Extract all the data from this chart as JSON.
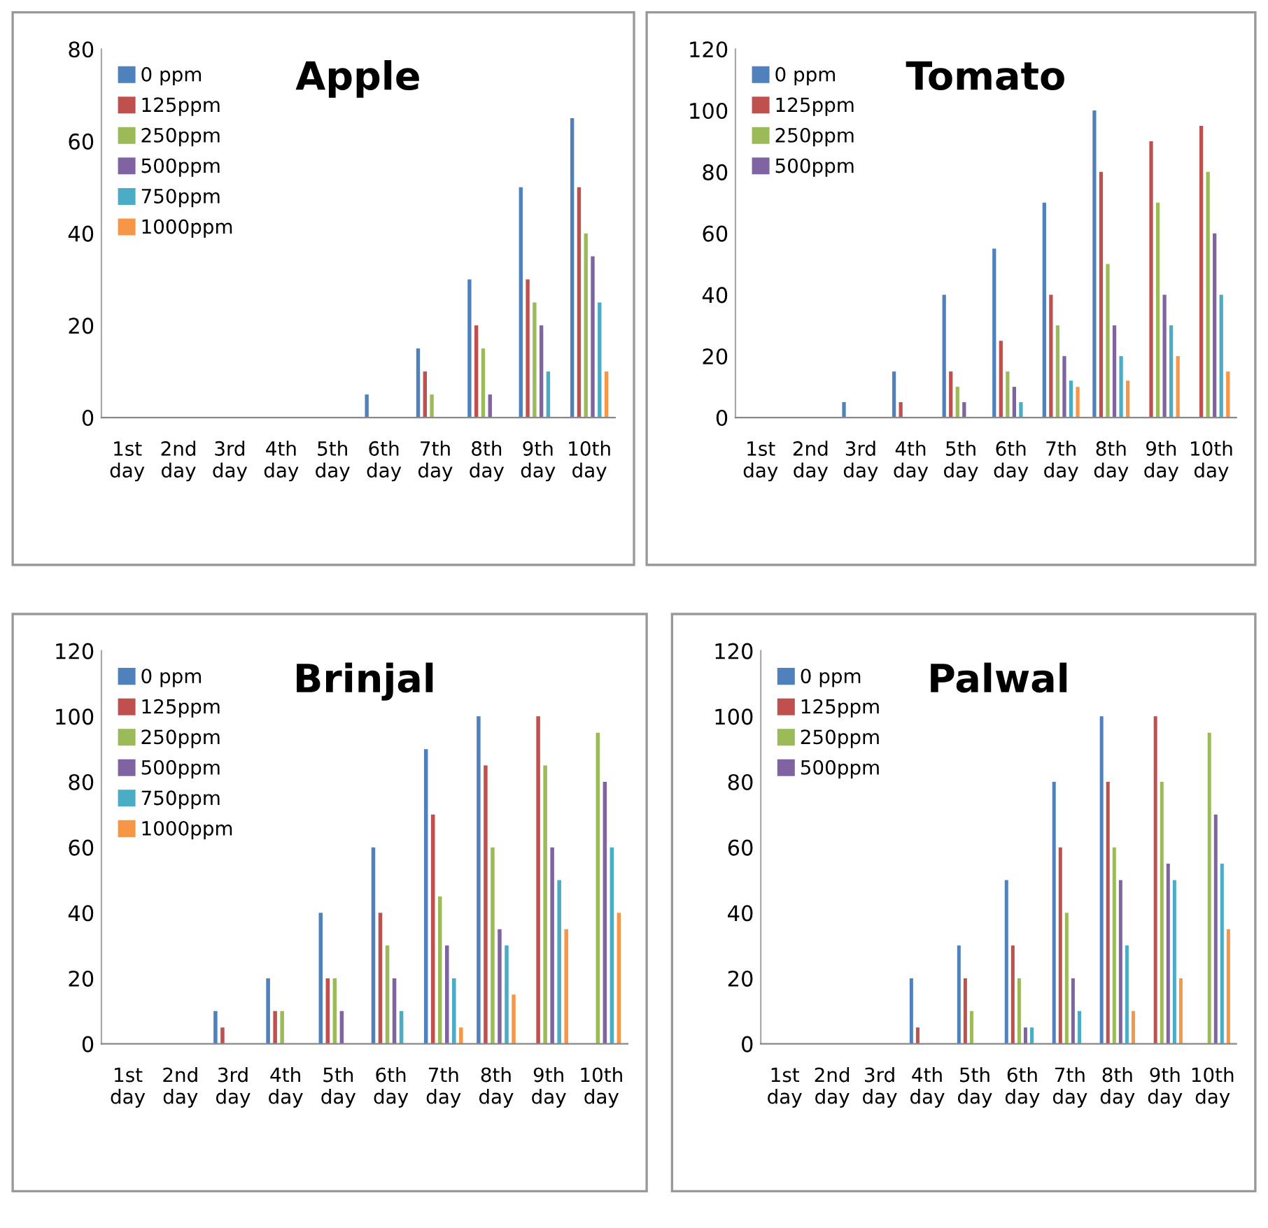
{
  "chart_data": [
    {
      "type": "bar",
      "title": "Apple",
      "categories": [
        "1st day",
        "2nd day",
        "3rd day",
        "4th day",
        "5th day",
        "6th day",
        "7th day",
        "8th day",
        "9th day",
        "10th day"
      ],
      "ylim": [
        0,
        80
      ],
      "yticks": [
        0,
        20,
        40,
        60,
        80
      ],
      "grid": false,
      "legend": "top left",
      "series": [
        {
          "name": "0 ppm",
          "color": "#4f81bd",
          "values": [
            0,
            0,
            0,
            0,
            0,
            5,
            15,
            30,
            50,
            65
          ]
        },
        {
          "name": "125ppm",
          "color": "#c0504d",
          "values": [
            0,
            0,
            0,
            0,
            0,
            0,
            10,
            20,
            30,
            50
          ]
        },
        {
          "name": "250ppm",
          "color": "#9bbb59",
          "values": [
            0,
            0,
            0,
            0,
            0,
            0,
            5,
            15,
            25,
            40
          ]
        },
        {
          "name": "500ppm",
          "color": "#8064a2",
          "values": [
            0,
            0,
            0,
            0,
            0,
            0,
            0,
            5,
            20,
            35
          ]
        },
        {
          "name": "750ppm",
          "color": "#4bacc6",
          "values": [
            0,
            0,
            0,
            0,
            0,
            0,
            0,
            0,
            10,
            25
          ]
        },
        {
          "name": "1000ppm",
          "color": "#f79646",
          "values": [
            0,
            0,
            0,
            0,
            0,
            0,
            0,
            0,
            0,
            10
          ]
        }
      ]
    },
    {
      "type": "bar",
      "title": "Tomato",
      "categories": [
        "1st day",
        "2nd day",
        "3rd day",
        "4th day",
        "5th day",
        "6th day",
        "7th day",
        "8th day",
        "9th day",
        "10th day"
      ],
      "ylim": [
        0,
        120
      ],
      "yticks": [
        0,
        20,
        40,
        60,
        80,
        100,
        120
      ],
      "grid": false,
      "legend": "top left",
      "series": [
        {
          "name": "0 ppm",
          "color": "#4f81bd",
          "values": [
            0,
            0,
            5,
            15,
            40,
            55,
            70,
            100,
            0,
            0
          ]
        },
        {
          "name": "125ppm",
          "color": "#c0504d",
          "values": [
            0,
            0,
            0,
            5,
            15,
            25,
            40,
            80,
            90,
            95
          ]
        },
        {
          "name": "250ppm",
          "color": "#9bbb59",
          "values": [
            0,
            0,
            0,
            0,
            10,
            15,
            30,
            50,
            70,
            80
          ]
        },
        {
          "name": "500ppm",
          "color": "#8064a2",
          "values": [
            0,
            0,
            0,
            0,
            5,
            10,
            20,
            30,
            40,
            60
          ]
        },
        {
          "color": "#4bacc6",
          "values": [
            0,
            0,
            0,
            0,
            0,
            5,
            12,
            20,
            30,
            40
          ]
        },
        {
          "color": "#f79646",
          "values": [
            0,
            0,
            0,
            0,
            0,
            0,
            10,
            12,
            20,
            15
          ]
        }
      ]
    },
    {
      "type": "bar",
      "title": "Brinjal",
      "categories": [
        "1st day",
        "2nd day",
        "3rd day",
        "4th day",
        "5th day",
        "6th day",
        "7th day",
        "8th day",
        "9th day",
        "10th day"
      ],
      "ylim": [
        0,
        120
      ],
      "yticks": [
        0,
        20,
        40,
        60,
        80,
        100,
        120
      ],
      "grid": false,
      "legend": "top left",
      "series": [
        {
          "name": "0 ppm",
          "color": "#4f81bd",
          "values": [
            0,
            0,
            10,
            20,
            40,
            60,
            90,
            100,
            0,
            0
          ]
        },
        {
          "name": "125ppm",
          "color": "#c0504d",
          "values": [
            0,
            0,
            5,
            10,
            20,
            40,
            70,
            85,
            100,
            0
          ]
        },
        {
          "name": "250ppm",
          "color": "#9bbb59",
          "values": [
            0,
            0,
            0,
            10,
            20,
            30,
            45,
            60,
            85,
            95
          ]
        },
        {
          "name": "500ppm",
          "color": "#8064a2",
          "values": [
            0,
            0,
            0,
            0,
            10,
            20,
            30,
            35,
            60,
            80
          ]
        },
        {
          "name": "750ppm",
          "color": "#4bacc6",
          "values": [
            0,
            0,
            0,
            0,
            0,
            10,
            20,
            30,
            50,
            60
          ]
        },
        {
          "name": "1000ppm",
          "color": "#f79646",
          "values": [
            0,
            0,
            0,
            0,
            0,
            0,
            5,
            15,
            35,
            40
          ]
        }
      ]
    },
    {
      "type": "bar",
      "title": "Palwal",
      "categories": [
        "1st day",
        "2nd day",
        "3rd day",
        "4th day",
        "5th day",
        "6th day",
        "7th day",
        "8th day",
        "9th day",
        "10th day"
      ],
      "ylim": [
        0,
        120
      ],
      "yticks": [
        0,
        20,
        40,
        60,
        80,
        100,
        120
      ],
      "grid": false,
      "legend": "top left",
      "series": [
        {
          "name": "0 ppm",
          "color": "#4f81bd",
          "values": [
            0,
            0,
            0,
            20,
            30,
            50,
            80,
            100,
            0,
            0
          ]
        },
        {
          "name": "125ppm",
          "color": "#c0504d",
          "values": [
            0,
            0,
            0,
            5,
            20,
            30,
            60,
            80,
            100,
            0
          ]
        },
        {
          "name": "250ppm",
          "color": "#9bbb59",
          "values": [
            0,
            0,
            0,
            0,
            10,
            20,
            40,
            60,
            80,
            95
          ]
        },
        {
          "name": "500ppm",
          "color": "#8064a2",
          "values": [
            0,
            0,
            0,
            0,
            0,
            5,
            20,
            50,
            55,
            70
          ]
        },
        {
          "color": "#4bacc6",
          "values": [
            0,
            0,
            0,
            0,
            0,
            5,
            10,
            30,
            50,
            55
          ]
        },
        {
          "color": "#f79646",
          "values": [
            0,
            0,
            0,
            0,
            0,
            0,
            0,
            10,
            20,
            35
          ]
        }
      ]
    }
  ]
}
